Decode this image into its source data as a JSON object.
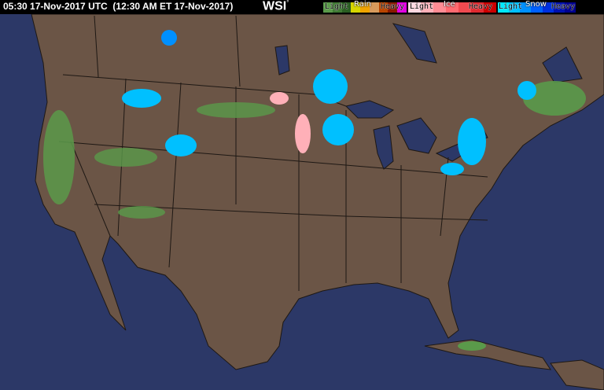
{
  "header": {
    "timestamp": "05:30 17-Nov-2017 UTC  (12:30 AM ET 17-Nov-2017)",
    "logo": "WSI",
    "logo_mark": "°"
  },
  "legend": [
    {
      "title": "Rain",
      "light": "Light",
      "heavy": "Heavy",
      "colors": [
        "#5a9a4a",
        "#3f7a33",
        "#2b5e22",
        "#d6d600",
        "#f0a400",
        "#d89a5c",
        "#b84400",
        "#8a1a00",
        "#e000e0"
      ]
    },
    {
      "title": "Ice",
      "light": "Light",
      "heavy": "Heavy",
      "colors": [
        "#ffd8e0",
        "#ffb0b8",
        "#ff8c94",
        "#ff6a70",
        "#f04a50",
        "#e02a30",
        "#cc0000"
      ]
    },
    {
      "title": "Snow",
      "light": "Light",
      "heavy": "Heavy",
      "colors": [
        "#00e8ff",
        "#00c0ff",
        "#0090ff",
        "#0060ff",
        "#0030e0",
        "#0010b0",
        "#000090"
      ]
    }
  ],
  "colors": {
    "ocean": "#2c3867",
    "land": "#6b5546",
    "borders": "#1e1814",
    "lakes": "#2c3867"
  }
}
